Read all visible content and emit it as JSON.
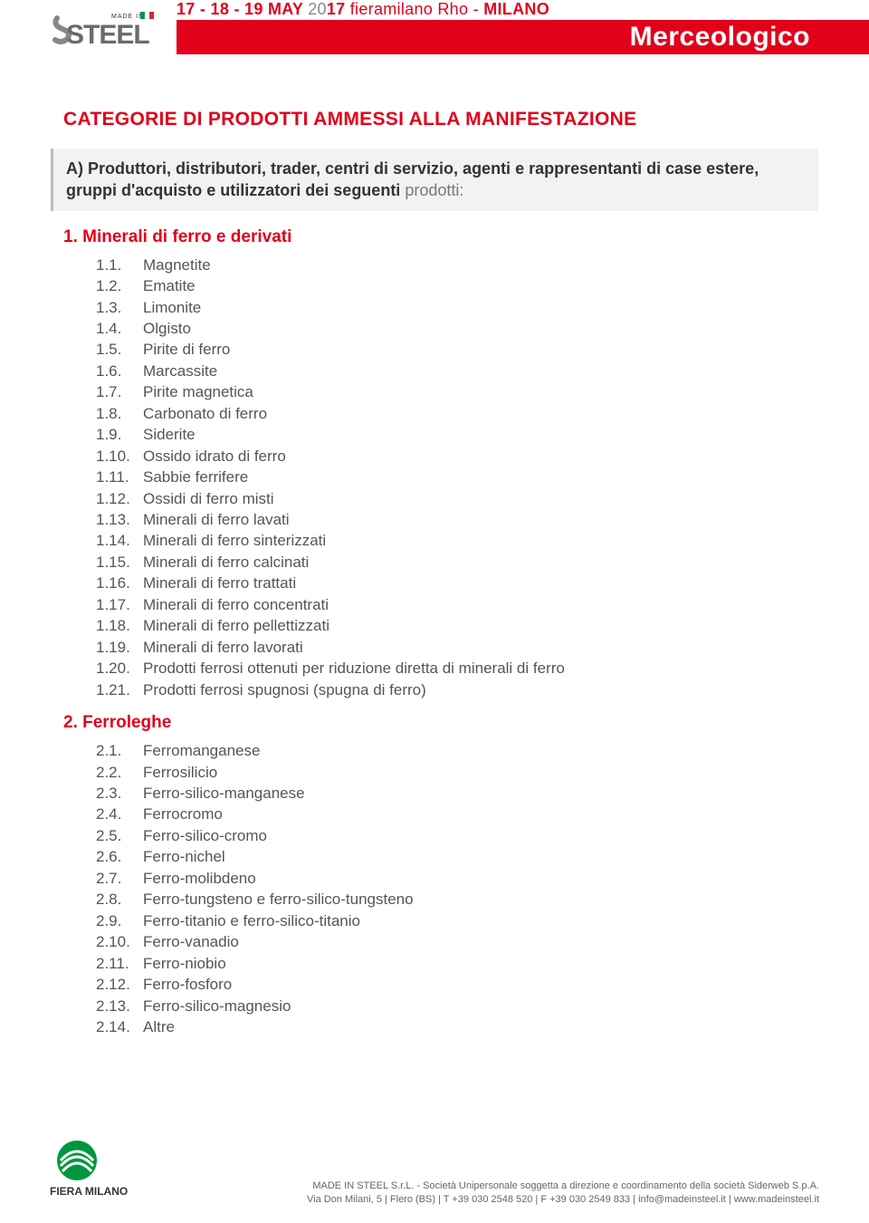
{
  "header": {
    "date_prefix": "17 - 18 - 19 MAY ",
    "date_year_light": "20",
    "date_year_bold": "17",
    "date_suffix": " fieramilano Rho - ",
    "date_city": "MILANO",
    "title": "Merceologico"
  },
  "main_title": "CATEGORIE DI PRODOTTI AMMESSI ALLA MANIFESTAZIONE",
  "intro": {
    "lead": "A) Produttori, distributori, trader, centri di servizio, agenti e rappresentanti di case estere, gruppi d'acquisto e utilizzatori dei seguenti ",
    "trail": "prodotti:"
  },
  "sections": [
    {
      "heading": "1. Minerali di ferro e derivati",
      "items": [
        {
          "num": "1.1.",
          "label": "Magnetite"
        },
        {
          "num": "1.2.",
          "label": "Ematite"
        },
        {
          "num": "1.3.",
          "label": "Limonite"
        },
        {
          "num": "1.4.",
          "label": "Olgisto"
        },
        {
          "num": "1.5.",
          "label": "Pirite di ferro"
        },
        {
          "num": "1.6.",
          "label": "Marcassite"
        },
        {
          "num": "1.7.",
          "label": "Pirite magnetica"
        },
        {
          "num": "1.8.",
          "label": "Carbonato di ferro"
        },
        {
          "num": "1.9.",
          "label": "Siderite"
        },
        {
          "num": "1.10.",
          "label": "Ossido idrato di ferro"
        },
        {
          "num": "1.11.",
          "label": "Sabbie ferrifere"
        },
        {
          "num": "1.12.",
          "label": "Ossidi di ferro misti"
        },
        {
          "num": "1.13.",
          "label": "Minerali di ferro lavati"
        },
        {
          "num": "1.14.",
          "label": "Minerali di ferro sinterizzati"
        },
        {
          "num": "1.15.",
          "label": "Minerali di ferro calcinati"
        },
        {
          "num": "1.16.",
          "label": "Minerali di ferro trattati"
        },
        {
          "num": "1.17.",
          "label": "Minerali di ferro concentrati"
        },
        {
          "num": "1.18.",
          "label": "Minerali di ferro pellettizzati"
        },
        {
          "num": "1.19.",
          "label": "Minerali di ferro lavorati"
        },
        {
          "num": "1.20.",
          "label": "Prodotti ferrosi ottenuti per riduzione diretta di minerali di ferro"
        },
        {
          "num": "1.21.",
          "label": "Prodotti ferrosi spugnosi (spugna di ferro)"
        }
      ]
    },
    {
      "heading": "2. Ferroleghe",
      "items": [
        {
          "num": "2.1.",
          "label": "Ferromanganese"
        },
        {
          "num": "2.2.",
          "label": "Ferrosilicio"
        },
        {
          "num": "2.3.",
          "label": "Ferro-silico-manganese"
        },
        {
          "num": "2.4.",
          "label": "Ferrocromo"
        },
        {
          "num": "2.5.",
          "label": "Ferro-silico-cromo"
        },
        {
          "num": "2.6.",
          "label": "Ferro-nichel"
        },
        {
          "num": "2.7.",
          "label": "Ferro-molibdeno"
        },
        {
          "num": "2.8.",
          "label": "Ferro-tungsteno e ferro-silico-tungsteno"
        },
        {
          "num": "2.9.",
          "label": "Ferro-titanio e ferro-silico-titanio"
        },
        {
          "num": "2.10.",
          "label": "Ferro-vanadio"
        },
        {
          "num": "2.11.",
          "label": "Ferro-niobio"
        },
        {
          "num": "2.12.",
          "label": "Ferro-fosforo"
        },
        {
          "num": "2.13.",
          "label": "Ferro-silico-magnesio"
        },
        {
          "num": "2.14.",
          "label": "Altre"
        }
      ]
    }
  ],
  "footer": {
    "line1": "MADE IN STEEL S.r.L. - Società Unipersonale soggetta a direzione e coordinamento della società Siderweb S.p.A.",
    "line2": "Via Don Milani, 5 | Flero (BS) | T +39 030 2548 520 | F +39 030 2549 833 | info@madeinsteel.it | www.madeinsteel.it",
    "fiera_label": "FIERA MILANO"
  },
  "logo": {
    "made_in": "MADE IN",
    "steel": "STEEL"
  },
  "colors": {
    "accent": "#e2001a",
    "text": "#555555",
    "heading": "#e2001a",
    "intro_bg": "#f2f2f2",
    "green": "#009640"
  }
}
